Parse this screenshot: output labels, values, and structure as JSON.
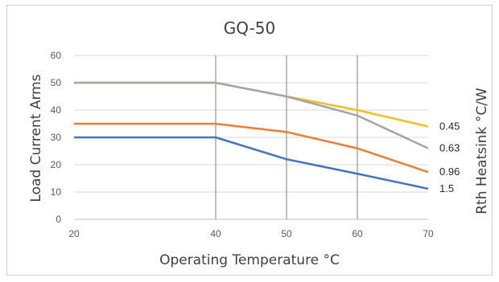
{
  "chart_data": {
    "type": "line",
    "title": "GQ-50",
    "xlabel": "Operating Temperature   °C",
    "ylabel": "Load Current Arms",
    "y2label": "Rth Heatsink °C/W",
    "x": [
      20,
      40,
      50,
      60,
      70
    ],
    "x_ticks": [
      "20",
      "40",
      "50",
      "60",
      "70"
    ],
    "xlim": [
      20,
      70
    ],
    "ylim": [
      0,
      60
    ],
    "y_ticks": [
      "0",
      "10",
      "20",
      "30",
      "40",
      "50",
      "60"
    ],
    "grid": "horizontal lines every 10; vertical lines at 40, 50, 60",
    "legend": "series labels at right end of lines",
    "series": [
      {
        "name": "0.45",
        "color": "#F5BF1C",
        "values": [
          50,
          50,
          45,
          40,
          34
        ]
      },
      {
        "name": "0.63",
        "color": "#A5A5A5",
        "values": [
          50,
          50,
          45,
          38,
          26
        ]
      },
      {
        "name": "0.96",
        "color": "#ED7D31",
        "values": [
          35,
          35,
          32,
          26,
          17.3
        ]
      },
      {
        "name": "1.5",
        "color": "#4472C4",
        "values": [
          30,
          30,
          22,
          16.7,
          11.2
        ]
      }
    ]
  }
}
